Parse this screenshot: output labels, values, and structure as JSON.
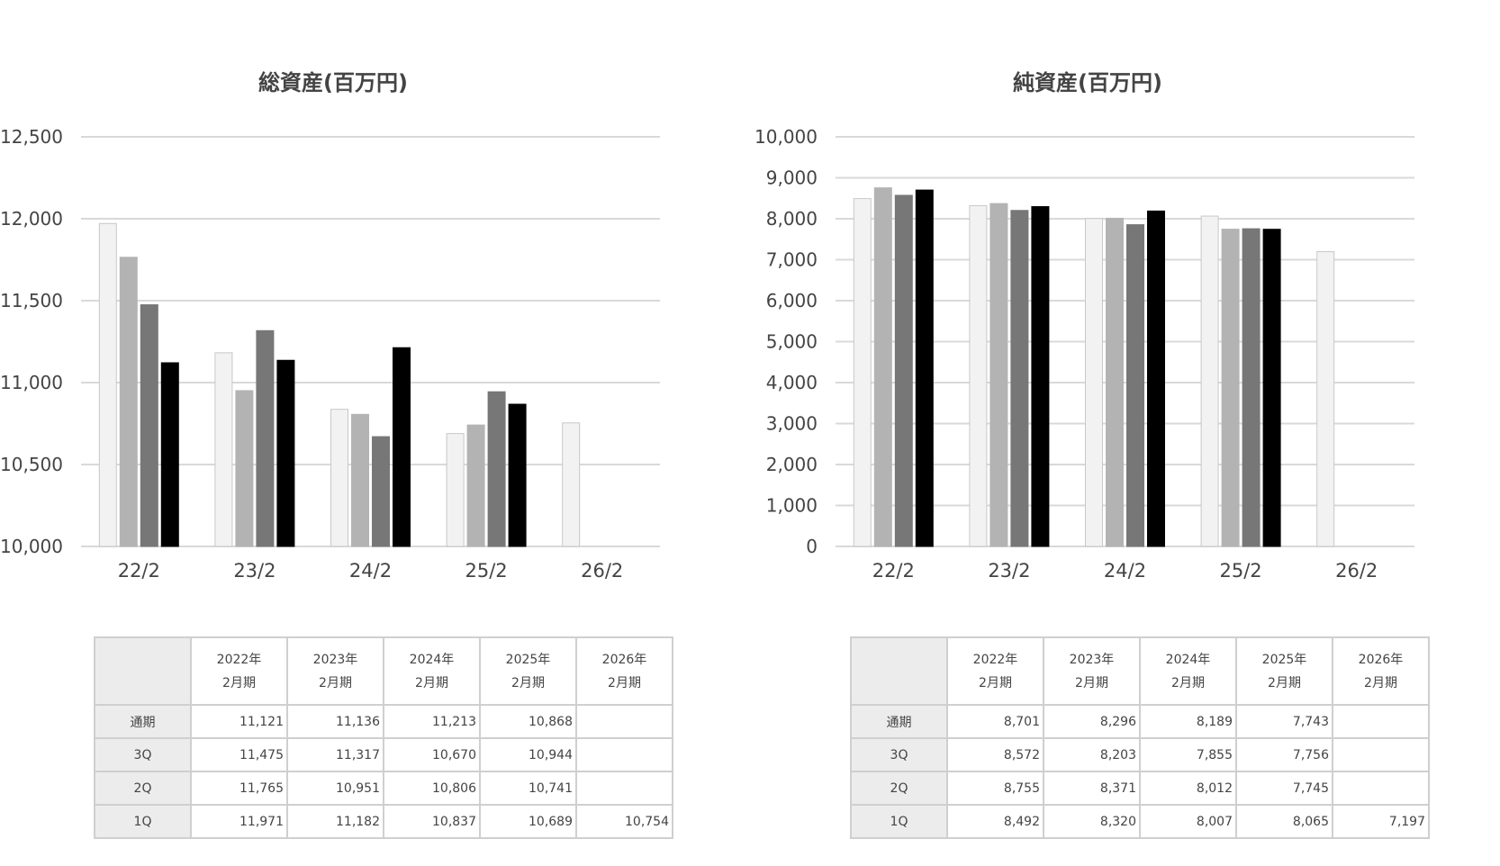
{
  "chart_data": [
    {
      "type": "bar",
      "title": "総資産(百万円)",
      "categories": [
        "22/2",
        "23/2",
        "24/2",
        "25/2",
        "26/2"
      ],
      "ylim": [
        10000,
        12500
      ],
      "yticks": [
        "10,000",
        "10,500",
        "11,000",
        "11,500",
        "12,000",
        "12,500"
      ],
      "series": [
        {
          "color": "#f2f2f2",
          "values": [
            11971,
            11182,
            10837,
            10689,
            10754
          ]
        },
        {
          "color": "#b3b3b3",
          "values": [
            11765,
            10951,
            10806,
            10741,
            null
          ]
        },
        {
          "color": "#777777",
          "values": [
            11475,
            11317,
            10670,
            10944,
            null
          ]
        },
        {
          "color": "#000000",
          "values": [
            11121,
            11136,
            11213,
            10868,
            null
          ]
        }
      ],
      "grid": true,
      "legend": "none"
    },
    {
      "type": "bar",
      "title": "純資産(百万円)",
      "categories": [
        "22/2",
        "23/2",
        "24/2",
        "25/2",
        "26/2"
      ],
      "ylim": [
        0,
        10000
      ],
      "yticks": [
        "0",
        "1,000",
        "2,000",
        "3,000",
        "4,000",
        "5,000",
        "6,000",
        "7,000",
        "8,000",
        "9,000",
        "10,000"
      ],
      "series": [
        {
          "color": "#f2f2f2",
          "values": [
            8492,
            8320,
            8007,
            8065,
            7197
          ]
        },
        {
          "color": "#b3b3b3",
          "values": [
            8755,
            8371,
            8012,
            7745,
            null
          ]
        },
        {
          "color": "#777777",
          "values": [
            8572,
            8203,
            7855,
            7756,
            null
          ]
        },
        {
          "color": "#000000",
          "values": [
            8701,
            8296,
            8189,
            7743,
            null
          ]
        }
      ],
      "grid": true,
      "legend": "none"
    }
  ],
  "tables": [
    {
      "headers": [
        {
          "year": "2022年",
          "period": "2月期"
        },
        {
          "year": "2023年",
          "period": "2月期"
        },
        {
          "year": "2024年",
          "period": "2月期"
        },
        {
          "year": "2025年",
          "period": "2月期"
        },
        {
          "year": "2026年",
          "period": "2月期"
        }
      ],
      "rows": [
        {
          "label": "通期",
          "values": [
            "11,121",
            "11,136",
            "11,213",
            "10,868",
            ""
          ]
        },
        {
          "label": "3Q",
          "values": [
            "11,475",
            "11,317",
            "10,670",
            "10,944",
            ""
          ]
        },
        {
          "label": "2Q",
          "values": [
            "11,765",
            "10,951",
            "10,806",
            "10,741",
            ""
          ]
        },
        {
          "label": "1Q",
          "values": [
            "11,971",
            "11,182",
            "10,837",
            "10,689",
            "10,754"
          ]
        }
      ]
    },
    {
      "headers": [
        {
          "year": "2022年",
          "period": "2月期"
        },
        {
          "year": "2023年",
          "period": "2月期"
        },
        {
          "year": "2024年",
          "period": "2月期"
        },
        {
          "year": "2025年",
          "period": "2月期"
        },
        {
          "year": "2026年",
          "period": "2月期"
        }
      ],
      "rows": [
        {
          "label": "通期",
          "values": [
            "8,701",
            "8,296",
            "8,189",
            "7,743",
            ""
          ]
        },
        {
          "label": "3Q",
          "values": [
            "8,572",
            "8,203",
            "7,855",
            "7,756",
            ""
          ]
        },
        {
          "label": "2Q",
          "values": [
            "8,755",
            "8,371",
            "8,012",
            "7,745",
            ""
          ]
        },
        {
          "label": "1Q",
          "values": [
            "8,492",
            "8,320",
            "8,007",
            "8,065",
            "7,197"
          ]
        }
      ]
    }
  ]
}
